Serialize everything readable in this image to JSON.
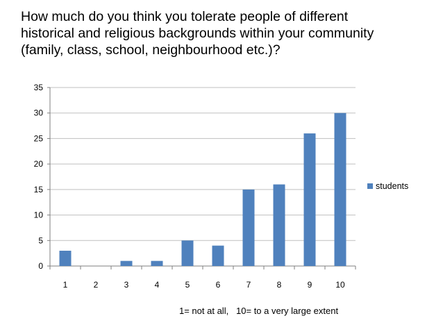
{
  "chart_data": {
    "type": "bar",
    "title_lines": [
      "How much do you think you tolerate people of different",
      "historical and religious backgrounds within your community",
      "(family, class, school, neighbourhood etc.)?"
    ],
    "categories": [
      "1",
      "2",
      "3",
      "4",
      "5",
      "6",
      "7",
      "8",
      "9",
      "10"
    ],
    "series": [
      {
        "name": "students",
        "values": [
          3,
          0,
          1,
          1,
          5,
          4,
          15,
          16,
          26,
          30
        ],
        "color": "#4F81BD"
      }
    ],
    "ylim": [
      0,
      35
    ],
    "yticks": [
      0,
      5,
      10,
      15,
      20,
      25,
      30,
      35
    ],
    "grid": true,
    "legend": "right",
    "annotation": "1= not at all,   10= to a very large extent"
  }
}
